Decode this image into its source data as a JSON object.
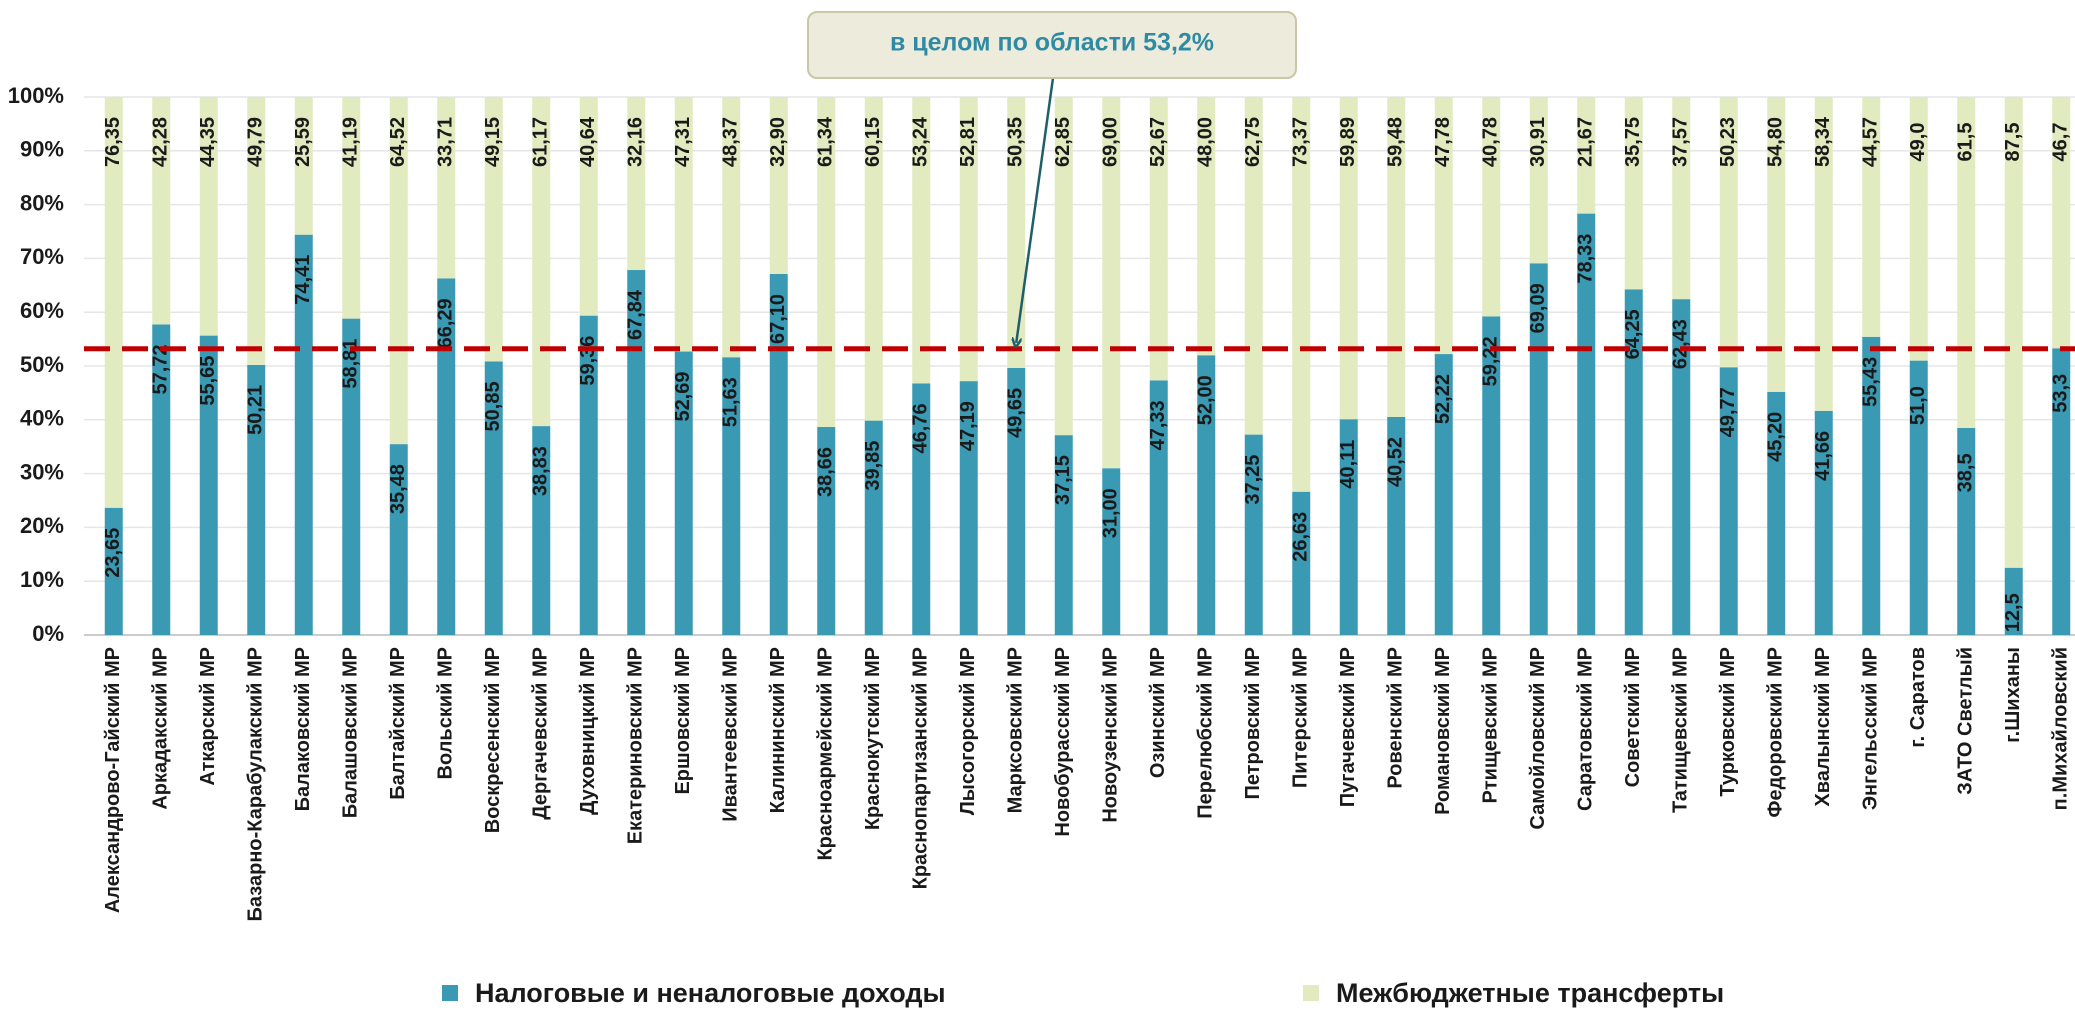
{
  "chart_data": {
    "type": "stacked_bar",
    "categories": [
      "Александрово-Гайский МР",
      "Аркадакский МР",
      "Аткарский МР",
      "Базарно-Карабулакский МР",
      "Балаковский МР",
      "Балашовский МР",
      "Балтайский МР",
      "Вольский МР",
      "Воскресенский МР",
      "Дергачевский МР",
      "Духовницкий МР",
      "Екатериновский МР",
      "Ершовский МР",
      "Ивантеевский МР",
      "Калининский МР",
      "Красноармейский МР",
      "Краснокутский МР",
      "Краснопартизанский МР",
      "Лысогорский МР",
      "Марксовский МР",
      "Новобурасский МР",
      "Новоузенский МР",
      "Озинский МР",
      "Перелюбский МР",
      "Петровский МР",
      "Питерский МР",
      "Пугачевский МР",
      "Ровенский МР",
      "Романовский МР",
      "Ртищевский МР",
      "Самойловский МР",
      "Саратовский МР",
      "Советский МР",
      "Татищевский МР",
      "Турковский МР",
      "Федоровский МР",
      "Хвалынский МР",
      "Энгельсский МР",
      "г. Саратов",
      "ЗАТО Светлый",
      "г.Шиханы",
      "п.Михайловский"
    ],
    "series": [
      {
        "name": "Налоговые и неналоговые доходы",
        "color": "#3a9ab4",
        "values": [
          23.65,
          57.72,
          55.65,
          50.21,
          74.41,
          58.81,
          35.48,
          66.29,
          50.85,
          38.83,
          59.36,
          67.84,
          52.69,
          51.63,
          67.1,
          38.66,
          39.85,
          46.76,
          47.19,
          49.65,
          37.15,
          31.0,
          47.33,
          52.0,
          37.25,
          26.63,
          40.11,
          40.52,
          52.22,
          59.22,
          69.09,
          78.33,
          64.25,
          62.43,
          49.77,
          45.2,
          41.66,
          55.43,
          51.0,
          38.5,
          12.5,
          53.3
        ],
        "value_labels": [
          "23,65",
          "57,72",
          "55,65",
          "50,21",
          "74,41",
          "58,81",
          "35,48",
          "66,29",
          "50,85",
          "38,83",
          "59,36",
          "67,84",
          "52,69",
          "51,63",
          "67,10",
          "38,66",
          "39,85",
          "46,76",
          "47,19",
          "49,65",
          "37,15",
          "31,00",
          "47,33",
          "52,00",
          "37,25",
          "26,63",
          "40,11",
          "40,52",
          "52,22",
          "59,22",
          "69,09",
          "78,33",
          "64,25",
          "62,43",
          "49,77",
          "45,20",
          "41,66",
          "55,43",
          "51,0",
          "38,5",
          "12,5",
          "53,3"
        ]
      },
      {
        "name": "Межбюджетные трансферты",
        "color": "#e2eac0",
        "values": [
          76.35,
          42.28,
          44.35,
          49.79,
          25.59,
          41.19,
          64.52,
          33.71,
          49.15,
          61.17,
          40.64,
          32.16,
          47.31,
          48.37,
          32.9,
          61.34,
          60.15,
          53.24,
          52.81,
          50.35,
          62.85,
          69.0,
          52.67,
          48.0,
          62.75,
          73.37,
          59.89,
          59.48,
          47.78,
          40.78,
          30.91,
          21.67,
          35.75,
          37.57,
          50.23,
          54.8,
          58.34,
          44.57,
          49.0,
          61.5,
          87.5,
          46.7
        ],
        "value_labels": [
          "76,35",
          "42,28",
          "44,35",
          "49,79",
          "25,59",
          "41,19",
          "64,52",
          "33,71",
          "49,15",
          "61,17",
          "40,64",
          "32,16",
          "47,31",
          "48,37",
          "32,90",
          "61,34",
          "60,15",
          "53,24",
          "52,81",
          "50,35",
          "62,85",
          "69,00",
          "52,67",
          "48,00",
          "62,75",
          "73,37",
          "59,89",
          "59,48",
          "47,78",
          "40,78",
          "30,91",
          "21,67",
          "35,75",
          "37,57",
          "50,23",
          "54,80",
          "58,34",
          "44,57",
          "49,0",
          "61,5",
          "87,5",
          "46,7"
        ]
      }
    ],
    "ylim": [
      0,
      100
    ],
    "yticks": [
      {
        "value": 0,
        "label": "0%"
      },
      {
        "value": 10,
        "label": "10%"
      },
      {
        "value": 20,
        "label": "20%"
      },
      {
        "value": 30,
        "label": "30%"
      },
      {
        "value": 40,
        "label": "40%"
      },
      {
        "value": 50,
        "label": "50%"
      },
      {
        "value": 60,
        "label": "60%"
      },
      {
        "value": 70,
        "label": "70%"
      },
      {
        "value": 80,
        "label": "80%"
      },
      {
        "value": 90,
        "label": "90%"
      },
      {
        "value": 100,
        "label": "100%"
      }
    ],
    "grid": true,
    "reference": {
      "value": 53.2,
      "label": "в целом по области 53,2%",
      "color": "#c00000"
    }
  }
}
